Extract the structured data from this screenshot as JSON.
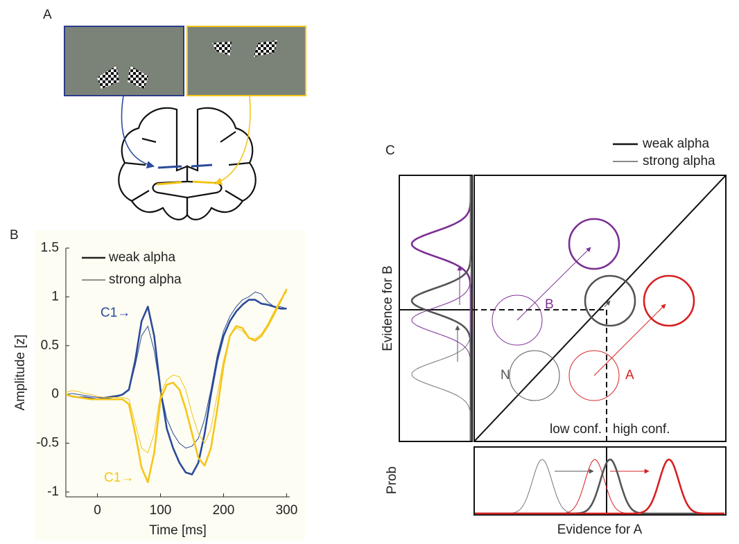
{
  "panel_a": {
    "label": "A"
  },
  "panel_b": {
    "label": "B"
  },
  "chart_data": {
    "type": "line",
    "xlabel": "Time [ms]",
    "ylabel": "Amplitude [z]",
    "x": [
      -50,
      -40,
      -30,
      -20,
      -10,
      0,
      10,
      20,
      30,
      40,
      50,
      60,
      70,
      80,
      90,
      100,
      110,
      120,
      130,
      140,
      150,
      160,
      170,
      180,
      190,
      200,
      210,
      220,
      230,
      240,
      250,
      260,
      270,
      280,
      290,
      300
    ],
    "xlim": [
      -50,
      305
    ],
    "xticks": [
      0,
      100,
      200,
      300
    ],
    "ylim": [
      -1.05,
      1.5
    ],
    "yticks": [
      -1,
      -0.5,
      0,
      0.5,
      1,
      1.5
    ],
    "series": [
      {
        "name": "weak alpha",
        "color": "#2b4a9a",
        "line_width": 2.6,
        "values": [
          0,
          -0.02,
          -0.03,
          -0.03,
          -0.04,
          -0.05,
          -0.04,
          -0.03,
          -0.02,
          0,
          0.05,
          0.35,
          0.75,
          0.9,
          0.6,
          0.05,
          -0.35,
          -0.55,
          -0.7,
          -0.8,
          -0.82,
          -0.7,
          -0.4,
          0,
          0.35,
          0.6,
          0.75,
          0.85,
          0.92,
          0.97,
          0.97,
          0.93,
          0.92,
          0.9,
          0.88,
          0.88
        ]
      },
      {
        "name": "strong alpha",
        "color": "#2b4a9a",
        "line_width": 1,
        "values": [
          0,
          0.01,
          0,
          -0.01,
          -0.02,
          -0.03,
          -0.03,
          -0.02,
          -0.01,
          0,
          0.04,
          0.3,
          0.6,
          0.7,
          0.45,
          0.05,
          -0.25,
          -0.4,
          -0.5,
          -0.55,
          -0.53,
          -0.45,
          -0.25,
          0.05,
          0.4,
          0.65,
          0.8,
          0.9,
          0.97,
          1.0,
          1.05,
          1.03,
          0.95,
          0.9,
          0.9,
          0.88
        ]
      },
      {
        "name": "weak alpha",
        "color": "#f5c518",
        "line_width": 2.6,
        "values": [
          0,
          -0.02,
          -0.03,
          -0.04,
          -0.05,
          -0.05,
          -0.05,
          -0.05,
          -0.05,
          -0.05,
          -0.1,
          -0.4,
          -0.75,
          -0.9,
          -0.6,
          -0.05,
          0.1,
          0.12,
          0.05,
          -0.15,
          -0.4,
          -0.65,
          -0.73,
          -0.55,
          -0.15,
          0.3,
          0.6,
          0.7,
          0.68,
          0.58,
          0.55,
          0.6,
          0.7,
          0.82,
          0.95,
          1.08
        ]
      },
      {
        "name": "strong alpha",
        "color": "#f5c518",
        "line_width": 1,
        "values": [
          0.02,
          0.04,
          0.03,
          0.01,
          0,
          -0.02,
          -0.03,
          -0.03,
          -0.03,
          -0.03,
          -0.05,
          -0.3,
          -0.55,
          -0.6,
          -0.4,
          0,
          0.15,
          0.2,
          0.18,
          0.05,
          -0.2,
          -0.4,
          -0.5,
          -0.35,
          0,
          0.35,
          0.6,
          0.68,
          0.65,
          0.58,
          0.57,
          0.62,
          0.72,
          0.85,
          0.97,
          1.05
        ]
      }
    ],
    "legend_color": "#222222",
    "annotations": [
      {
        "text": "C1→",
        "color": "#2b4a9a"
      },
      {
        "text": "C1→",
        "color": "#f5c518"
      }
    ]
  },
  "panel_c": {
    "label": "C",
    "legend": [
      "weak alpha",
      "strong alpha"
    ],
    "y_label": "Evidence for B",
    "x_label": "Evidence for A",
    "marginal_label": "Prob",
    "circle_labels": [
      "B",
      "N",
      "A"
    ],
    "low_conf": "low conf.",
    "high_conf": "high conf."
  }
}
